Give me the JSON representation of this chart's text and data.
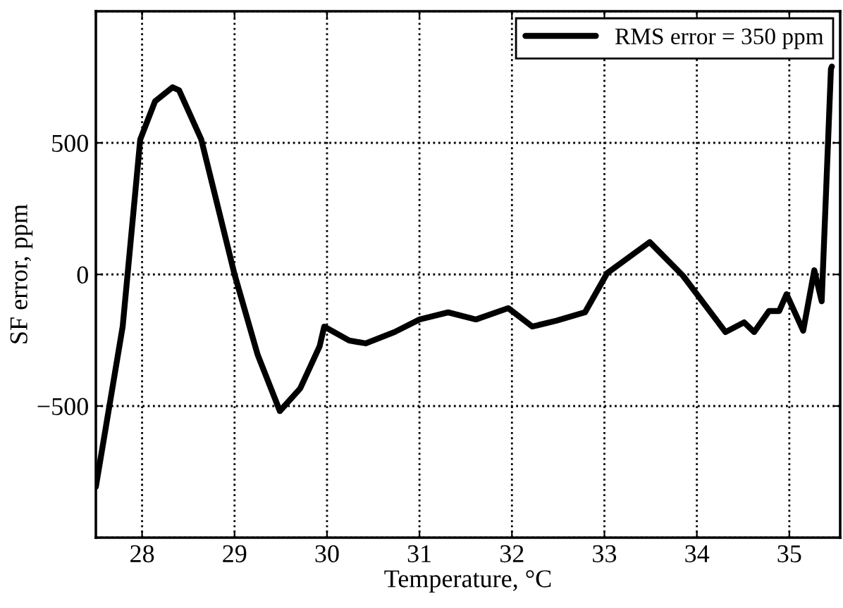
{
  "chart_data": {
    "type": "line",
    "xlabel": "Temperature, °C",
    "ylabel": "SF error, ppm",
    "xlim": [
      27.5,
      35.55
    ],
    "ylim": [
      -1000,
      1000
    ],
    "xticks": [
      28,
      29,
      30,
      31,
      32,
      33,
      34,
      35
    ],
    "yticks": [
      {
        "value": -1000,
        "label": null
      },
      -500,
      0,
      500,
      {
        "value": 1000,
        "label": null
      }
    ],
    "grid": true,
    "legend": "top right",
    "marker": "none",
    "line_style": "solid",
    "series": [
      {
        "name": "RMS error = 350 ppm",
        "color": "#000000",
        "x": [
          27.5,
          27.79,
          27.98,
          28.14,
          28.33,
          28.4,
          28.64,
          29.0,
          29.25,
          29.49,
          29.71,
          29.92,
          29.97,
          30.24,
          30.42,
          30.73,
          31.0,
          31.31,
          31.61,
          31.96,
          32.22,
          32.48,
          32.79,
          33.03,
          33.49,
          33.85,
          34.31,
          34.51,
          34.62,
          34.78,
          34.89,
          34.97,
          35.15,
          35.27,
          35.35,
          35.42,
          35.45,
          35.46
        ],
        "values": [
          -807,
          -198,
          513,
          658,
          711,
          700,
          513,
          0,
          -305,
          -519,
          -433,
          -273,
          -198,
          -251,
          -262,
          -219,
          -171,
          -144,
          -171,
          -128,
          -198,
          -176,
          -144,
          5,
          123,
          -5,
          -219,
          -182,
          -219,
          -139,
          -139,
          -75,
          -214,
          16,
          -102,
          513,
          781,
          790
        ]
      }
    ]
  }
}
